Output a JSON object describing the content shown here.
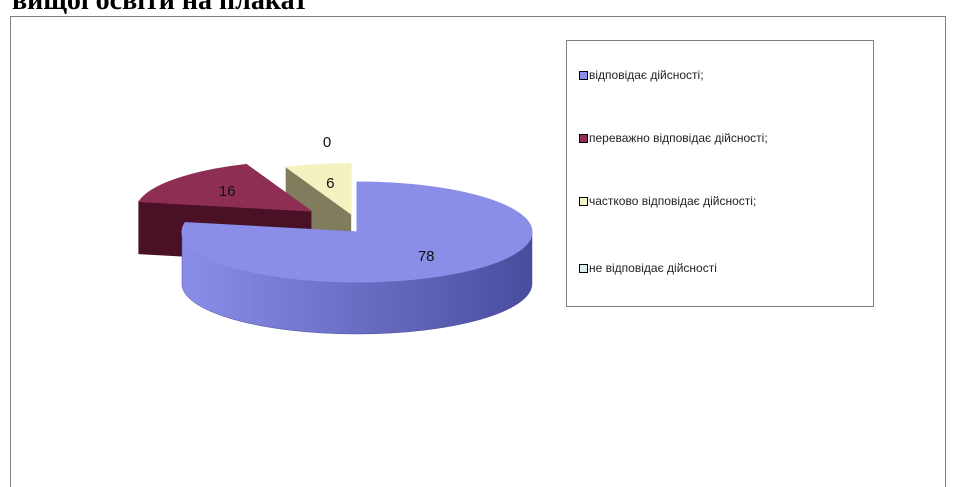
{
  "page": {
    "heading": "вищої освіти на плакат"
  },
  "chart_data": {
    "type": "pie",
    "style": "3d-exploded",
    "categories": [
      "відповідає дійсності;",
      "переважно відповідає дійсності;",
      "частково відповідає дійсності;",
      "не відповідає дійсності"
    ],
    "values": [
      78,
      16,
      6,
      0
    ],
    "colors": [
      "#8a8ee8",
      "#8f2e55",
      "#f4f2c0",
      "#d8f0ee"
    ],
    "side_colors": [
      "#4a4d9e",
      "#4a1026",
      "#7f7d5e",
      "#8fa6a4"
    ],
    "legend_position": "right"
  }
}
